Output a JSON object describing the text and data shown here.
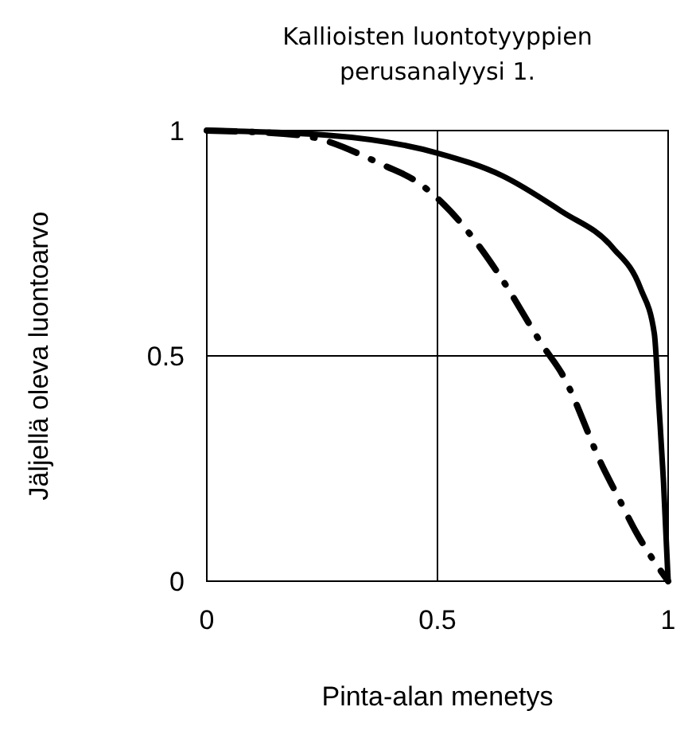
{
  "chart_data": {
    "type": "line",
    "title": "Kallioisten luontotyyppien perusanalyysi 1.",
    "xlabel": "Pinta-alan menetys",
    "ylabel": "Jäljellä oleva luontoarvo",
    "xlim": [
      0,
      1
    ],
    "ylim": [
      0,
      1
    ],
    "xticks": [
      0,
      0.5,
      1
    ],
    "yticks": [
      0,
      0.5,
      1
    ],
    "grid": true,
    "series": [
      {
        "color": "#000000",
        "line_style": "solid",
        "x": [
          0,
          0.26,
          0.5,
          0.64,
          0.77,
          0.88,
          0.94,
          0.97,
          0.98,
          0.99,
          1
        ],
        "values": [
          1,
          0.99,
          0.95,
          0.9,
          0.82,
          0.74,
          0.65,
          0.55,
          0.39,
          0.22,
          0
        ]
      },
      {
        "color": "#000000",
        "line_style": "dashdot",
        "x": [
          0,
          0.2,
          0.39,
          0.45,
          0.51,
          0.6,
          0.64,
          0.73,
          0.77,
          0.86,
          0.89,
          0.93,
          1
        ],
        "values": [
          1,
          0.99,
          0.92,
          0.89,
          0.84,
          0.73,
          0.67,
          0.52,
          0.46,
          0.25,
          0.19,
          0.11,
          0
        ]
      }
    ]
  }
}
